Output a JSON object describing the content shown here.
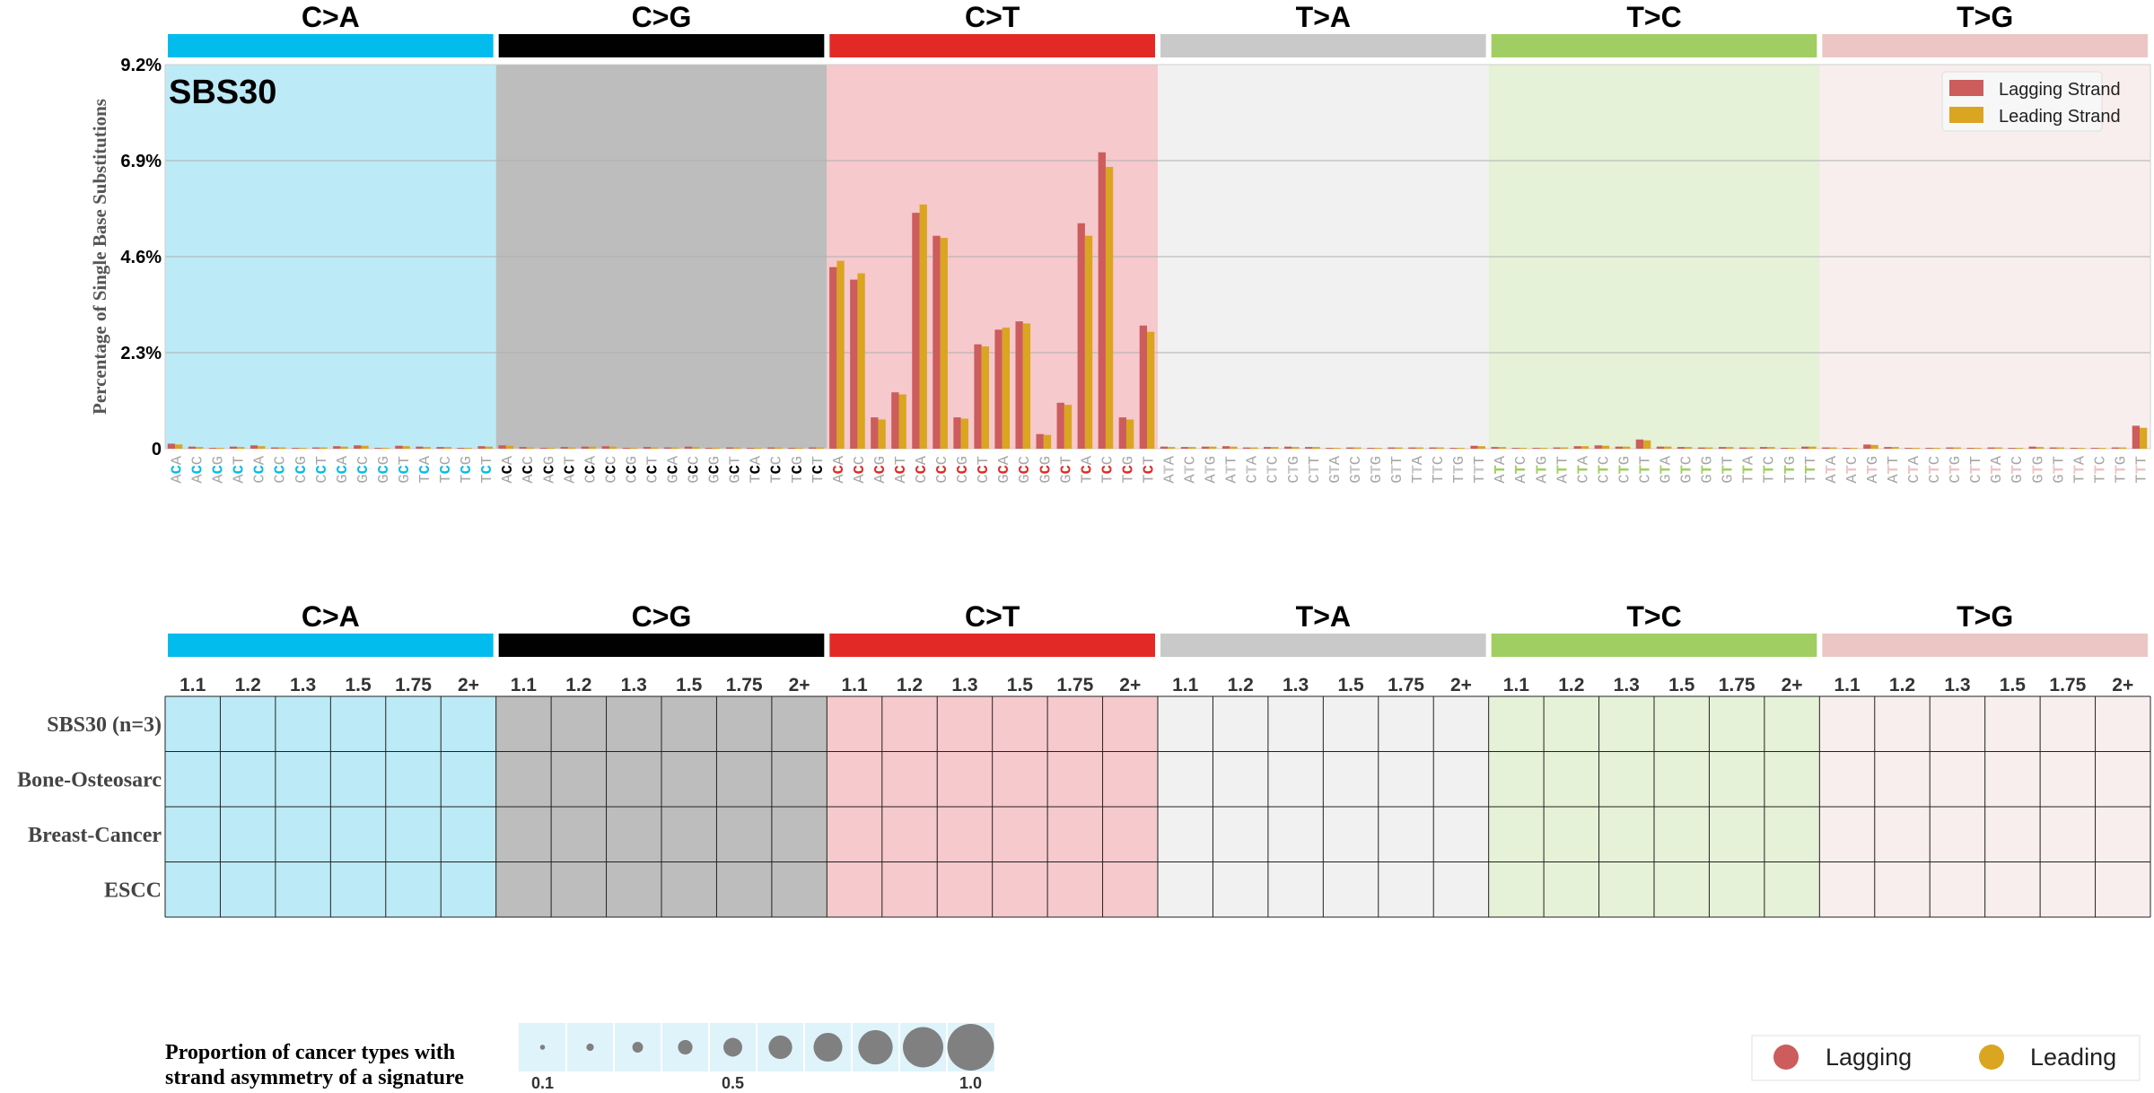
{
  "colors": {
    "categories": [
      "#03bcee",
      "#010101",
      "#e32926",
      "#cac9c9",
      "#a1ce63",
      "#ebc6c4"
    ],
    "backgrounds": [
      "#bdeaf7",
      "#bdbdbd",
      "#f6c9cc",
      "#f1f1f1",
      "#e5f2d7",
      "#f9eeee"
    ],
    "lagging": "#cd5c5c",
    "leading": "#daa520",
    "circle": "#808080",
    "context_grey": "#a6a6a6"
  },
  "chart_data": [
    {
      "type": "bar",
      "signature": "SBS30",
      "ylabel": "Percentage of Single Base Substitutions",
      "ylim": [
        0,
        9.2
      ],
      "yticks": [
        "0",
        "2.3%",
        "4.6%",
        "6.9%",
        "9.2%"
      ],
      "ytick_values": [
        0,
        2.3,
        4.6,
        6.9,
        9.2
      ],
      "grid": true,
      "legend_position": "top-right",
      "categories": [
        "C>A",
        "C>G",
        "C>T",
        "T>A",
        "T>C",
        "T>G"
      ],
      "contexts": [
        [
          "ACA",
          "ACC",
          "ACG",
          "ACT",
          "CCA",
          "CCC",
          "CCG",
          "CCT",
          "GCA",
          "GCC",
          "GCG",
          "GCT",
          "TCA",
          "TCC",
          "TCG",
          "TCT"
        ],
        [
          "ACA",
          "ACC",
          "ACG",
          "ACT",
          "CCA",
          "CCC",
          "CCG",
          "CCT",
          "GCA",
          "GCC",
          "GCG",
          "GCT",
          "TCA",
          "TCC",
          "TCG",
          "TCT"
        ],
        [
          "ACA",
          "ACC",
          "ACG",
          "ACT",
          "CCA",
          "CCC",
          "CCG",
          "CCT",
          "GCA",
          "GCC",
          "GCG",
          "GCT",
          "TCA",
          "TCC",
          "TCG",
          "TCT"
        ],
        [
          "ATA",
          "ATC",
          "ATG",
          "ATT",
          "CTA",
          "CTC",
          "CTG",
          "CTT",
          "GTA",
          "GTC",
          "GTG",
          "GTT",
          "TTA",
          "TTC",
          "TTG",
          "TTT"
        ],
        [
          "ATA",
          "ATC",
          "ATG",
          "ATT",
          "CTA",
          "CTC",
          "CTG",
          "CTT",
          "GTA",
          "GTC",
          "GTG",
          "GTT",
          "TTA",
          "TTC",
          "TTG",
          "TTT"
        ],
        [
          "ATA",
          "ATC",
          "ATG",
          "ATT",
          "CTA",
          "CTC",
          "CTG",
          "CTT",
          "GTA",
          "GTC",
          "GTG",
          "GTT",
          "TTA",
          "TTC",
          "TTG",
          "TTT"
        ]
      ],
      "series": [
        {
          "name": "Lagging Strand",
          "values": [
            [
              0.12,
              0.05,
              0.02,
              0.05,
              0.08,
              0.03,
              0.02,
              0.03,
              0.06,
              0.08,
              0.02,
              0.07,
              0.05,
              0.04,
              0.02,
              0.06
            ],
            [
              0.08,
              0.04,
              0.02,
              0.04,
              0.05,
              0.06,
              0.02,
              0.04,
              0.03,
              0.05,
              0.02,
              0.03,
              0.02,
              0.03,
              0.02,
              0.03
            ],
            [
              4.35,
              4.05,
              0.75,
              1.35,
              5.65,
              5.1,
              0.75,
              2.5,
              2.85,
              3.05,
              0.35,
              1.1,
              5.4,
              7.1,
              0.75,
              2.95
            ],
            [
              0.05,
              0.04,
              0.05,
              0.06,
              0.03,
              0.04,
              0.05,
              0.04,
              0.02,
              0.03,
              0.02,
              0.03,
              0.03,
              0.03,
              0.02,
              0.07
            ],
            [
              0.04,
              0.02,
              0.02,
              0.03,
              0.06,
              0.08,
              0.05,
              0.22,
              0.05,
              0.04,
              0.03,
              0.04,
              0.03,
              0.04,
              0.02,
              0.05
            ],
            [
              0.03,
              0.02,
              0.1,
              0.04,
              0.02,
              0.02,
              0.03,
              0.02,
              0.03,
              0.02,
              0.05,
              0.03,
              0.02,
              0.02,
              0.03,
              0.55
            ]
          ]
        },
        {
          "name": "Leading Strand",
          "values": [
            [
              0.1,
              0.04,
              0.02,
              0.04,
              0.06,
              0.03,
              0.02,
              0.03,
              0.05,
              0.07,
              0.02,
              0.06,
              0.04,
              0.04,
              0.02,
              0.05
            ],
            [
              0.07,
              0.03,
              0.02,
              0.03,
              0.05,
              0.05,
              0.02,
              0.03,
              0.03,
              0.04,
              0.02,
              0.03,
              0.02,
              0.03,
              0.02,
              0.03
            ],
            [
              4.5,
              4.2,
              0.7,
              1.3,
              5.85,
              5.05,
              0.72,
              2.45,
              2.9,
              3.0,
              0.33,
              1.05,
              5.1,
              6.75,
              0.7,
              2.8
            ],
            [
              0.04,
              0.04,
              0.05,
              0.05,
              0.03,
              0.04,
              0.04,
              0.04,
              0.02,
              0.03,
              0.02,
              0.03,
              0.03,
              0.03,
              0.02,
              0.06
            ],
            [
              0.04,
              0.02,
              0.02,
              0.03,
              0.06,
              0.07,
              0.05,
              0.2,
              0.05,
              0.04,
              0.03,
              0.04,
              0.03,
              0.04,
              0.02,
              0.05
            ],
            [
              0.03,
              0.02,
              0.09,
              0.04,
              0.02,
              0.02,
              0.03,
              0.02,
              0.03,
              0.02,
              0.04,
              0.03,
              0.02,
              0.02,
              0.03,
              0.5
            ]
          ]
        }
      ]
    },
    {
      "type": "heatmap",
      "categories": [
        "C>A",
        "C>G",
        "C>T",
        "T>A",
        "T>C",
        "T>G"
      ],
      "columns": [
        "1.1",
        "1.2",
        "1.3",
        "1.5",
        "1.75",
        "2+"
      ],
      "rows": [
        "SBS30 (n=3)",
        "Bone-Osteosarc",
        "Breast-Cancer",
        "ESCC"
      ],
      "cells": "empty",
      "size_legend": {
        "title_line1": "Proportion of cancer types with",
        "title_line2": "strand asymmetry of a signature",
        "steps": [
          0.1,
          0.2,
          0.3,
          0.4,
          0.5,
          0.6,
          0.7,
          0.8,
          0.9,
          1.0
        ],
        "tick_labels": [
          "0.1",
          "0.5",
          "1.0"
        ]
      },
      "color_legend": [
        "Lagging",
        "Leading"
      ]
    }
  ]
}
